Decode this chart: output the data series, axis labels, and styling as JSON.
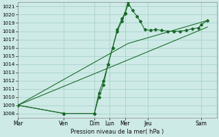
{
  "xlabel": "Pression niveau de la mer( hPa )",
  "ylim": [
    1007.5,
    1021.5
  ],
  "yticks": [
    1008,
    1009,
    1010,
    1011,
    1012,
    1013,
    1014,
    1015,
    1016,
    1017,
    1018,
    1019,
    1020,
    1021
  ],
  "day_labels": [
    "Mar",
    "Ven",
    "Dim",
    "Lun",
    "Mer",
    "Jeu",
    "Sam"
  ],
  "day_positions": [
    0,
    3,
    5,
    6,
    7,
    8.5,
    12
  ],
  "xlim": [
    0,
    13
  ],
  "background_color": "#ceeae6",
  "grid_color": "#9eccc6",
  "line_color": "#1a6b2a",
  "series1_x": [
    0,
    3,
    5,
    5.3,
    5.6,
    5.9,
    6.2,
    6.5,
    6.8,
    7.0,
    7.2
  ],
  "series1_y": [
    1009,
    1008,
    1008,
    1010.5,
    1012,
    1014,
    1016,
    1018,
    1019.2,
    1020.1,
    1021.2
  ],
  "series2_x": [
    0,
    3,
    5,
    5.3,
    5.6,
    5.9,
    6.2,
    6.5,
    6.8,
    7.0,
    7.2,
    7.5,
    7.8,
    8.0,
    8.3,
    8.7,
    9.0,
    9.4,
    9.8,
    10.2,
    10.6,
    11.0,
    11.4,
    11.8,
    12.0,
    12.4
  ],
  "series2_y": [
    1009,
    1008,
    1008,
    1010,
    1011.5,
    1014,
    1016,
    1018.2,
    1019.5,
    1020.2,
    1021.5,
    1020.5,
    1019.8,
    1019.2,
    1018.2,
    1018.1,
    1018.2,
    1018.1,
    1018.0,
    1018.0,
    1018.0,
    1018.1,
    1018.3,
    1018.4,
    1018.8,
    1019.3
  ],
  "series3_x": [
    0,
    7.2,
    12.4
  ],
  "series3_y": [
    1009,
    1016.5,
    1019.3
  ],
  "series4_x": [
    0,
    7.2,
    12.4
  ],
  "series4_y": [
    1009,
    1014.5,
    1018.5
  ]
}
